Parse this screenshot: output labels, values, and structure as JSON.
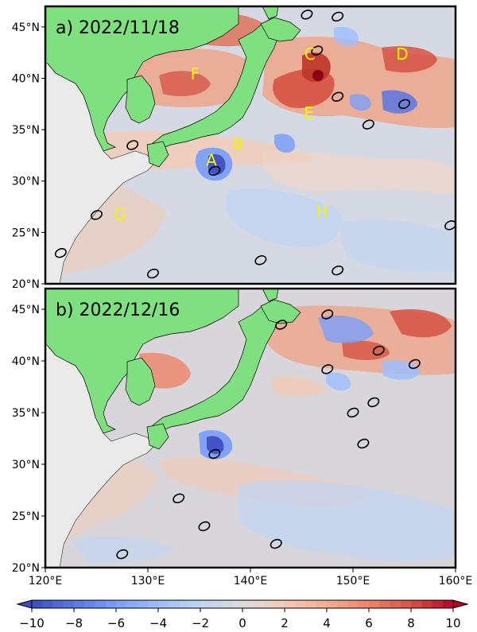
{
  "chart_data": [
    {
      "type": "heatmap",
      "panel_label": "a) 2022/11/18",
      "x_range": [
        120,
        160
      ],
      "y_range": [
        20,
        47
      ],
      "x_ticks": [
        "120°E",
        "130°E",
        "140°E",
        "150°E",
        "160°E"
      ],
      "y_ticks": [
        "20°N",
        "25°N",
        "30°N",
        "35°N",
        "40°N",
        "45°N"
      ],
      "annotations": [
        {
          "text": "A",
          "lon": 136.2,
          "lat": 31.5
        },
        {
          "text": "B",
          "lon": 138.8,
          "lat": 33.1
        },
        {
          "text": "C",
          "lon": 145.8,
          "lat": 41.8
        },
        {
          "text": "D",
          "lon": 154.8,
          "lat": 41.8
        },
        {
          "text": "E",
          "lon": 145.7,
          "lat": 36.1
        },
        {
          "text": "F",
          "lon": 134.6,
          "lat": 39.9
        },
        {
          "text": "G",
          "lon": 127.3,
          "lat": 26.2
        },
        {
          "text": "H",
          "lon": 147.0,
          "lat": 26.5
        }
      ],
      "warm_features": [
        {
          "lon": 146.5,
          "lat": 40.3,
          "value": 10
        },
        {
          "lon": 144.5,
          "lat": 37.5,
          "value": 8
        },
        {
          "lon": 155.0,
          "lat": 42.0,
          "value": 6
        },
        {
          "lon": 136.0,
          "lat": 43.5,
          "value": 6
        },
        {
          "lon": 134.0,
          "lat": 39.0,
          "value": 6
        },
        {
          "lon": 130.5,
          "lat": 38.5,
          "value": 5
        },
        {
          "lon": 140.0,
          "lat": 43.5,
          "value": 6
        }
      ],
      "cold_features": [
        {
          "lon": 136.3,
          "lat": 32.0,
          "value": -8
        },
        {
          "lon": 152.5,
          "lat": 38.0,
          "value": -6
        },
        {
          "lon": 148.5,
          "lat": 42.5,
          "value": -5
        },
        {
          "lon": 142.3,
          "lat": 32.3,
          "value": -4
        }
      ],
      "eddy_markers": [
        {
          "lon": 145.5,
          "lat": 46.2
        },
        {
          "lon": 148.5,
          "lat": 46.0
        },
        {
          "lon": 146.5,
          "lat": 42.7
        },
        {
          "lon": 148.5,
          "lat": 38.2
        },
        {
          "lon": 151.5,
          "lat": 35.5
        },
        {
          "lon": 155.0,
          "lat": 37.5
        },
        {
          "lon": 128.5,
          "lat": 33.5
        },
        {
          "lon": 136.5,
          "lat": 31.0
        },
        {
          "lon": 125.0,
          "lat": 26.7
        },
        {
          "lon": 121.5,
          "lat": 23.0
        },
        {
          "lon": 130.5,
          "lat": 21.0
        },
        {
          "lon": 141.0,
          "lat": 22.3
        },
        {
          "lon": 148.5,
          "lat": 21.3
        },
        {
          "lon": 159.5,
          "lat": 25.7
        }
      ]
    },
    {
      "type": "heatmap",
      "panel_label": "b) 2022/12/16",
      "x_range": [
        120,
        160
      ],
      "y_range": [
        20,
        47
      ],
      "x_ticks": [
        "120°E",
        "130°E",
        "140°E",
        "150°E",
        "160°E"
      ],
      "y_ticks": [
        "20°N",
        "25°N",
        "30°N",
        "35°N",
        "40°N",
        "45°N"
      ],
      "warm_features": [
        {
          "lon": 157.0,
          "lat": 44.5,
          "value": 8
        },
        {
          "lon": 150.5,
          "lat": 41.0,
          "value": 7
        },
        {
          "lon": 146.0,
          "lat": 40.0,
          "value": 5
        },
        {
          "lon": 131.0,
          "lat": 38.5,
          "value": 5
        },
        {
          "lon": 135.5,
          "lat": 40.5,
          "value": 4
        }
      ],
      "cold_features": [
        {
          "lon": 136.5,
          "lat": 31.8,
          "value": -7
        },
        {
          "lon": 150.0,
          "lat": 43.0,
          "value": -5
        },
        {
          "lon": 153.0,
          "lat": 38.5,
          "value": -4
        },
        {
          "lon": 145.5,
          "lat": 37.0,
          "value": -3
        }
      ],
      "eddy_markers": [
        {
          "lon": 147.5,
          "lat": 44.5
        },
        {
          "lon": 143.0,
          "lat": 43.5
        },
        {
          "lon": 152.5,
          "lat": 41.0
        },
        {
          "lon": 147.5,
          "lat": 39.2
        },
        {
          "lon": 156.0,
          "lat": 39.7
        },
        {
          "lon": 152.0,
          "lat": 36.0
        },
        {
          "lon": 150.0,
          "lat": 35.0
        },
        {
          "lon": 136.5,
          "lat": 31.0
        },
        {
          "lon": 151.0,
          "lat": 32.0
        },
        {
          "lon": 133.0,
          "lat": 26.7
        },
        {
          "lon": 135.5,
          "lat": 24.0
        },
        {
          "lon": 127.5,
          "lat": 21.3
        },
        {
          "lon": 142.5,
          "lat": 22.3
        }
      ]
    }
  ],
  "colorbar": {
    "range": [
      -10,
      10
    ],
    "ticks": [
      "−10",
      "−8",
      "−6",
      "−4",
      "−2",
      "0",
      "2",
      "4",
      "6",
      "8",
      "10"
    ],
    "colors": [
      "#3b4cc0",
      "#5977e3",
      "#7b9ff9",
      "#9ebeff",
      "#c0d4f5",
      "#dddcdc",
      "#f2cbb7",
      "#f7ac8e",
      "#ee8468",
      "#d65244",
      "#b40426"
    ]
  },
  "colors": {
    "land": "#7fe07f",
    "continent": "#eaeaea",
    "ocean_base": "#d5d9e3"
  }
}
